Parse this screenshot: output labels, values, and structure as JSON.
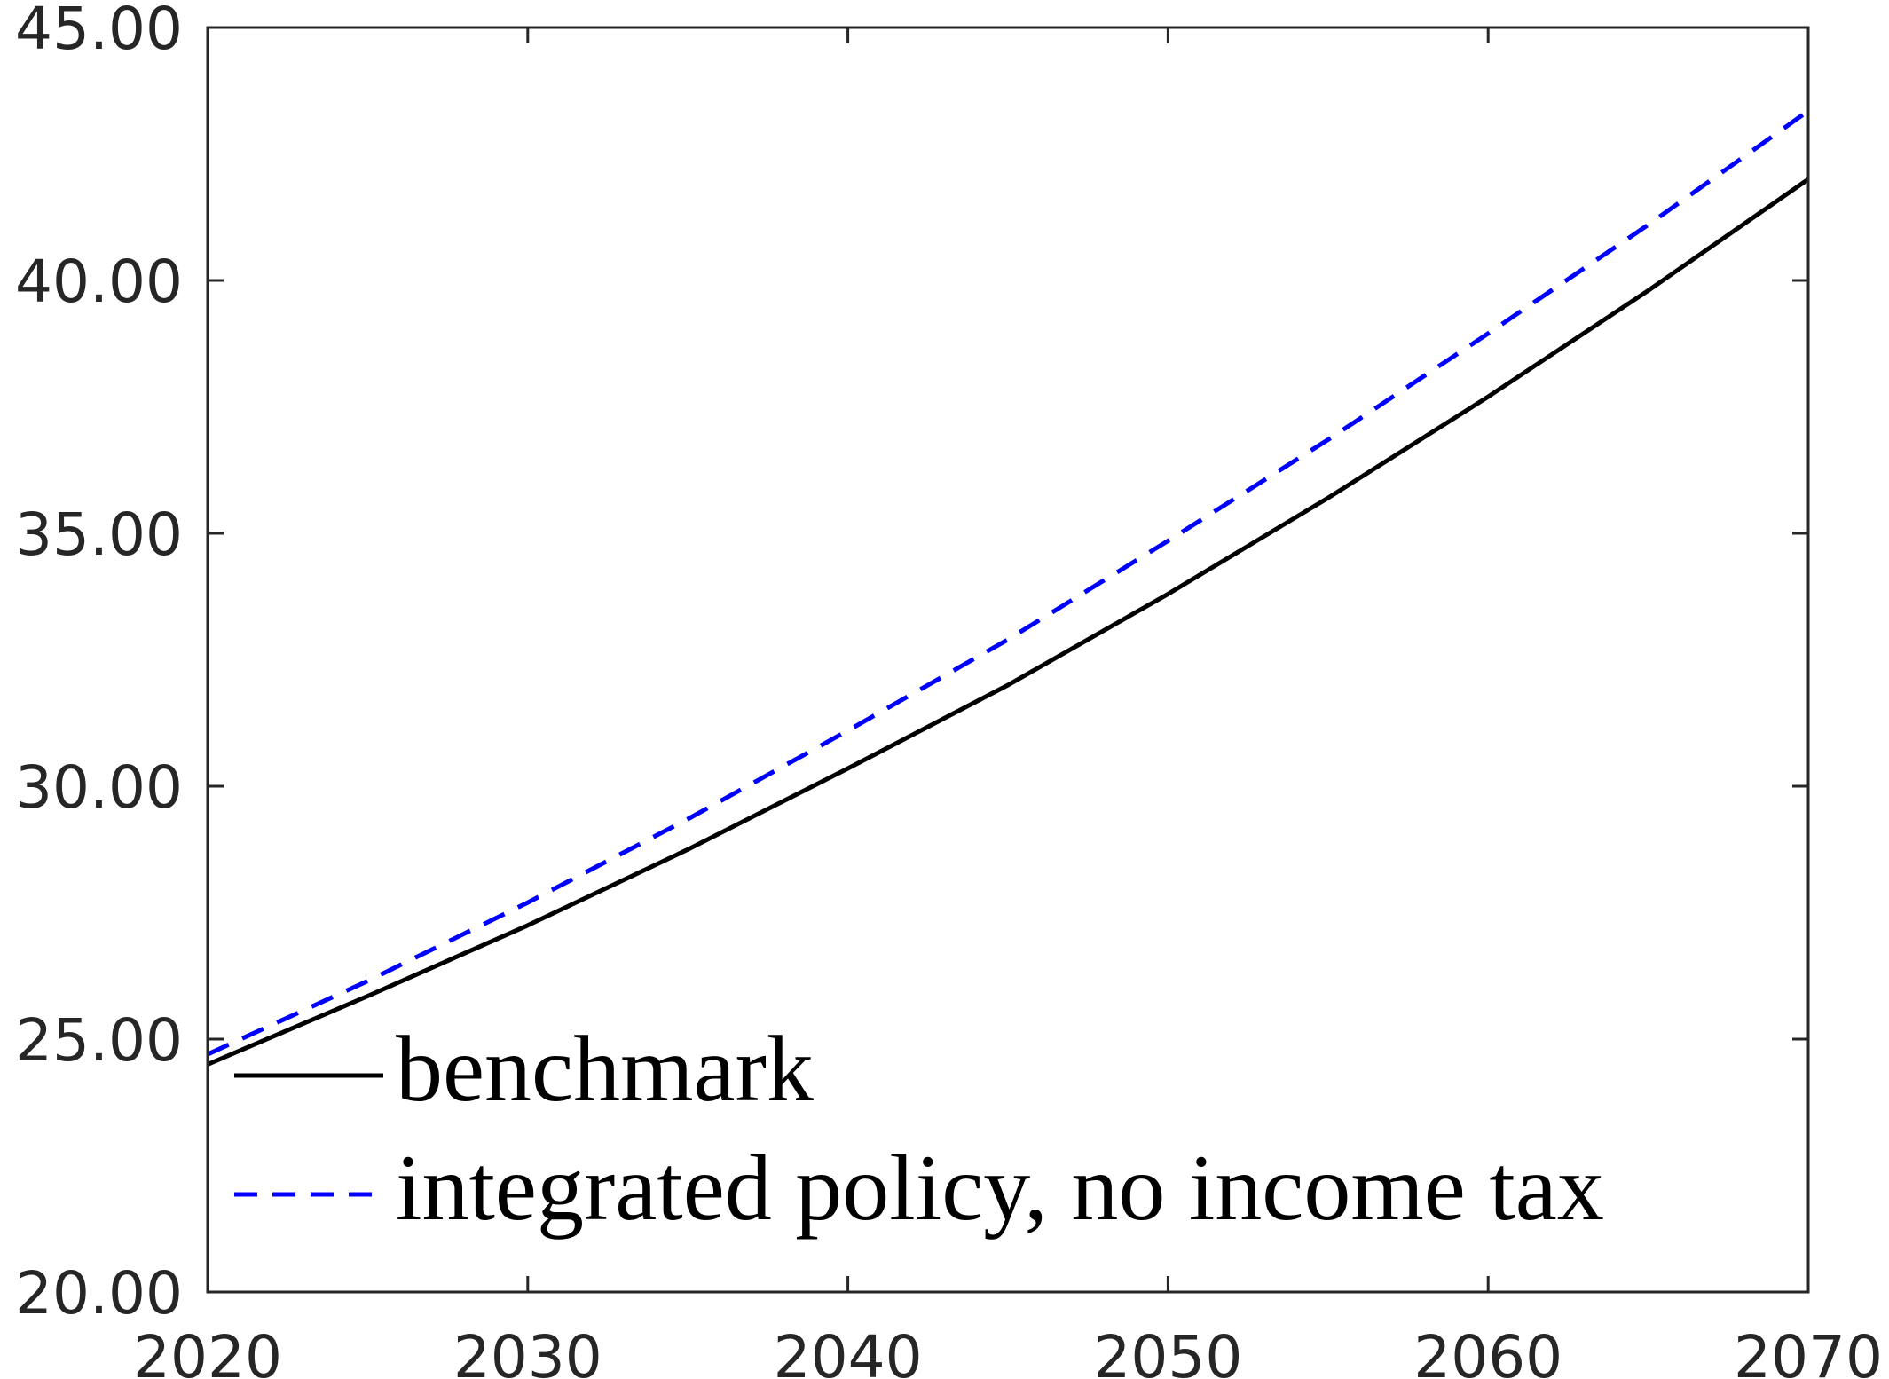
{
  "chart_data": {
    "type": "line",
    "title": "",
    "xlabel": "",
    "ylabel": "",
    "xlim": [
      2020,
      2070
    ],
    "ylim": [
      20,
      45
    ],
    "xticks": [
      2020,
      2030,
      2040,
      2050,
      2060,
      2070
    ],
    "xtick_labels": [
      "2020",
      "2030",
      "2040",
      "2050",
      "2060",
      "2070"
    ],
    "yticks": [
      20,
      25,
      30,
      35,
      40,
      45
    ],
    "ytick_labels": [
      "20.00",
      "25.00",
      "30.00",
      "35.00",
      "40.00",
      "45.00"
    ],
    "grid": false,
    "legend_position": "bottom-left",
    "x": [
      2020,
      2025,
      2030,
      2035,
      2040,
      2045,
      2050,
      2055,
      2060,
      2065,
      2070
    ],
    "series": [
      {
        "name": "benchmark",
        "style": "solid",
        "color": "#000000",
        "values": [
          24.5,
          25.85,
          27.25,
          28.75,
          30.35,
          32.0,
          33.8,
          35.7,
          37.7,
          39.8,
          42.0
        ]
      },
      {
        "name": "integrated policy, no income tax",
        "style": "dashed",
        "color": "#0000ff",
        "values": [
          24.7,
          26.15,
          27.7,
          29.35,
          31.1,
          32.9,
          34.85,
          36.85,
          38.95,
          41.1,
          43.35
        ]
      }
    ]
  }
}
